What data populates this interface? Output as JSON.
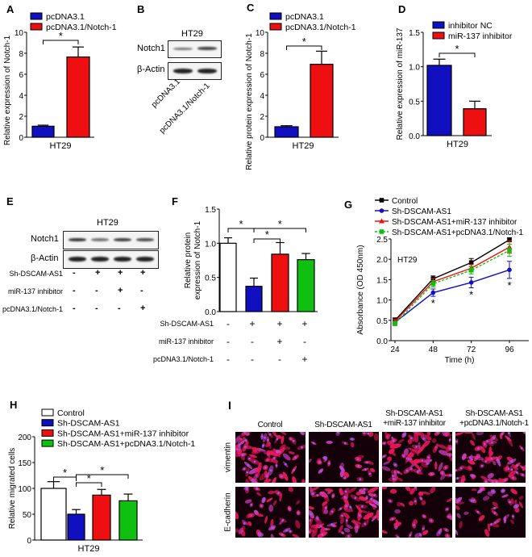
{
  "panels": {
    "A": "A",
    "B": "B",
    "C": "C",
    "D": "D",
    "E": "E",
    "F": "F",
    "G": "G",
    "H": "H",
    "I": "I"
  },
  "colors": {
    "blue": "#1010c0",
    "red": "#ee1010",
    "green": "#10c010",
    "white": "#ffffff",
    "black": "#000000"
  },
  "blot_B": {
    "title": "HT29",
    "rows": [
      "Notch1",
      "β-Actin"
    ],
    "lanes": [
      "pcDNA3.1",
      "pcDNA3.1/Notch-1"
    ]
  },
  "blot_E": {
    "title": "HT29",
    "rows": [
      "Notch1",
      "β-Actin"
    ],
    "conditions": [
      {
        "label": "Sh-DSCAM-AS1",
        "signs": [
          "-",
          "+",
          "+",
          "+"
        ]
      },
      {
        "label": "miR-137 inhibitor",
        "signs": [
          "-",
          "-",
          "+",
          "-"
        ]
      },
      {
        "label": "pcDNA3.1/Notch-1",
        "signs": [
          "-",
          "-",
          "-",
          "+"
        ]
      }
    ]
  },
  "panel_I": {
    "columns": [
      "Control",
      "Sh-DSCAM-AS1",
      "Sh-DSCAM-AS1\n+miR-137 inhibitor",
      "Sh-DSCAM-AS1\n+pcDNA3.1/Notch-1"
    ],
    "rows": [
      "vimentin",
      "E-cadherin"
    ]
  },
  "chart_data": [
    {
      "id": "A",
      "type": "bar",
      "ylabel": "Relative expression of Notch-1",
      "xlabel": "HT29",
      "ylim": [
        0,
        10
      ],
      "yticks": [
        0,
        2,
        4,
        6,
        8,
        10
      ],
      "series": [
        {
          "name": "pcDNA3.1",
          "color": "#1010c0",
          "value": 1.05,
          "error": 0.1
        },
        {
          "name": "pcDNA3.1/Notch-1",
          "color": "#ee1010",
          "value": 7.65,
          "error": 0.95
        }
      ],
      "significance": [
        {
          "from": 0,
          "to": 1,
          "label": "*"
        }
      ]
    },
    {
      "id": "C",
      "type": "bar",
      "ylabel": "Relative protein expression of Notch-1",
      "xlabel": "HT29",
      "ylim": [
        0,
        10
      ],
      "yticks": [
        0,
        2,
        4,
        6,
        8,
        10
      ],
      "series": [
        {
          "name": "pcDNA3.1",
          "color": "#1010c0",
          "value": 1.0,
          "error": 0.1
        },
        {
          "name": "pcDNA3.1/Notch-1",
          "color": "#ee1010",
          "value": 6.95,
          "error": 1.25
        }
      ],
      "significance": [
        {
          "from": 0,
          "to": 1,
          "label": "*"
        }
      ]
    },
    {
      "id": "D",
      "type": "bar",
      "ylabel": "Relative expression of miR-137",
      "xlabel": "HT29",
      "ylim": [
        0,
        1.5
      ],
      "yticks": [
        "0.0",
        "0.5",
        "1.0",
        "1.5"
      ],
      "series": [
        {
          "name": "inhibitor NC",
          "color": "#1010c0",
          "value": 1.02,
          "error": 0.09
        },
        {
          "name": "miR-137 inhibitor",
          "color": "#ee1010",
          "value": 0.39,
          "error": 0.11
        }
      ],
      "significance": [
        {
          "from": 0,
          "to": 1,
          "label": "*"
        }
      ]
    },
    {
      "id": "F",
      "type": "bar",
      "ylabel": "Relative protein\nexpression of Notch-1",
      "ylim": [
        0,
        1.5
      ],
      "yticks": [
        "0.0",
        "0.5",
        "1.0",
        "1.5"
      ],
      "series": [
        {
          "color": "#ffffff",
          "value": 1.0,
          "error": 0.08
        },
        {
          "color": "#1010c0",
          "value": 0.37,
          "error": 0.12
        },
        {
          "color": "#ee1010",
          "value": 0.84,
          "error": 0.17
        },
        {
          "color": "#10c010",
          "value": 0.76,
          "error": 0.09
        }
      ],
      "significance": [
        {
          "from": 0,
          "to": 1,
          "label": "*"
        },
        {
          "from": 1,
          "to": 2,
          "label": "*"
        },
        {
          "from": 1,
          "to": 3,
          "label": "*"
        }
      ],
      "conditions": [
        {
          "label": "Sh-DSCAM-AS1",
          "signs": [
            "-",
            "+",
            "+",
            "+"
          ]
        },
        {
          "label": "miR-137 inhibitor",
          "signs": [
            "-",
            "-",
            "+",
            "-"
          ]
        },
        {
          "label": "pcDNA3.1/Notch-1",
          "signs": [
            "-",
            "-",
            "-",
            "+"
          ]
        }
      ]
    },
    {
      "id": "G",
      "type": "line",
      "ylabel": "Absorbance (OD 450nm)",
      "xlabel": "Time (h)",
      "annotation": "HT29",
      "x": [
        24,
        48,
        72,
        96
      ],
      "ylim": [
        0,
        2.5
      ],
      "yticks": [
        "0.0",
        "0.5",
        "1.0",
        "1.5",
        "2.0",
        "2.5"
      ],
      "series": [
        {
          "name": "Control",
          "color": "#000000",
          "marker": "square",
          "values": [
            0.5,
            1.52,
            1.92,
            2.48
          ],
          "errors": [
            0.06,
            0.07,
            0.1,
            0.05
          ]
        },
        {
          "name": "Sh-DSCAM-AS1",
          "color": "#1010c0",
          "marker": "circle",
          "values": [
            0.45,
            1.18,
            1.43,
            1.74
          ],
          "errors": [
            0.05,
            0.09,
            0.13,
            0.21
          ]
        },
        {
          "name": "Sh-DSCAM-AS1+miR-137 inhibitor",
          "color": "#ee1010",
          "marker": "triangle",
          "values": [
            0.47,
            1.45,
            1.78,
            2.3
          ],
          "errors": [
            0.05,
            0.08,
            0.09,
            0.15
          ]
        },
        {
          "name": "Sh-DSCAM-AS1+pcDNA3.1/Notch-1",
          "color": "#10c010",
          "marker": "square",
          "dashed": true,
          "values": [
            0.42,
            1.4,
            1.73,
            2.22
          ],
          "errors": [
            0.05,
            0.08,
            0.09,
            0.15
          ]
        }
      ],
      "significance_at": [
        {
          "x": 48,
          "label": "*"
        },
        {
          "x": 72,
          "label": "*"
        },
        {
          "x": 96,
          "label": "*"
        }
      ]
    },
    {
      "id": "H",
      "type": "bar",
      "ylabel": "Relative migrated cells",
      "xlabel": "HT29",
      "ylim": [
        0,
        200
      ],
      "yticks": [
        0,
        50,
        100,
        150,
        200
      ],
      "series": [
        {
          "name": "Control",
          "color": "#ffffff",
          "value": 100,
          "error": 13
        },
        {
          "name": "Sh-DSCAM-AS1",
          "color": "#1010c0",
          "value": 50,
          "error": 9
        },
        {
          "name": "Sh-DSCAM-AS1+miR-137 inhibitor",
          "color": "#ee1010",
          "value": 87,
          "error": 11
        },
        {
          "name": "Sh-DSCAM-AS1+pcDNA3.1/Notch-1",
          "color": "#10c010",
          "value": 76,
          "error": 13
        }
      ],
      "significance": [
        {
          "from": 0,
          "to": 1,
          "label": "*"
        },
        {
          "from": 1,
          "to": 2,
          "label": "*"
        },
        {
          "from": 1,
          "to": 3,
          "label": "*"
        }
      ]
    }
  ]
}
